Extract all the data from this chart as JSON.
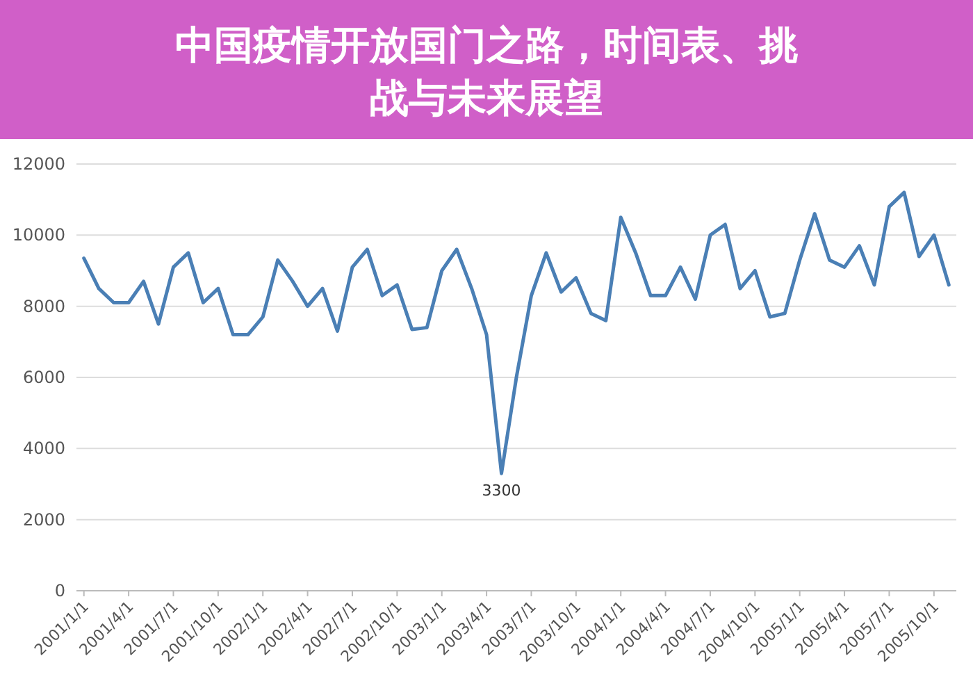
{
  "chart_data": {
    "type": "line",
    "title": "中国疫情开放国门之路，时间表、挑战与未来展望",
    "categories": [
      "2001/1/1",
      null,
      null,
      "2001/4/1",
      null,
      null,
      "2001/7/1",
      null,
      null,
      "2001/10/1",
      null,
      null,
      "2002/1/1",
      null,
      null,
      "2002/4/1",
      null,
      null,
      "2002/7/1",
      null,
      null,
      "2002/10/1",
      null,
      null,
      "2003/1/1",
      null,
      null,
      "2003/4/1",
      null,
      null,
      "2003/7/1",
      null,
      null,
      "2003/10/1",
      null,
      null,
      "2004/1/1",
      null,
      null,
      "2004/4/1",
      null,
      null,
      "2004/7/1",
      null,
      null,
      "2004/10/1",
      null,
      null,
      "2005/1/1",
      null,
      null,
      "2005/4/1",
      null,
      null,
      "2005/7/1",
      null,
      null,
      "2005/10/1",
      null
    ],
    "values": [
      9350,
      8500,
      8100,
      8100,
      8700,
      7500,
      9100,
      9500,
      8100,
      8500,
      7200,
      7200,
      7700,
      9300,
      8700,
      8000,
      8500,
      7300,
      9100,
      9600,
      8300,
      8600,
      7350,
      7400,
      9000,
      9600,
      8500,
      7200,
      3300,
      6000,
      8300,
      9500,
      8400,
      8800,
      7800,
      7600,
      10500,
      9500,
      8300,
      8300,
      9100,
      8200,
      10000,
      10300,
      8500,
      9000,
      7700,
      7800,
      9300,
      10600,
      9300,
      9100,
      9700,
      8600,
      10800,
      11200,
      9400,
      10000,
      8600
    ],
    "value_labels": [
      null,
      null,
      null,
      null,
      null,
      null,
      null,
      null,
      null,
      null,
      null,
      null,
      null,
      null,
      null,
      null,
      null,
      null,
      null,
      null,
      null,
      null,
      null,
      null,
      null,
      null,
      null,
      null,
      "3300",
      null,
      null,
      null,
      null,
      null,
      null,
      null,
      null,
      null,
      null,
      null,
      null,
      null,
      null,
      null,
      null,
      null,
      null,
      null,
      null,
      null,
      null,
      null,
      null,
      null,
      null,
      null,
      null,
      null,
      null
    ],
    "color": "#4a7fb5",
    "ylim": [
      0,
      12000
    ],
    "yticks": [
      0,
      2000,
      4000,
      6000,
      8000,
      10000,
      12000
    ],
    "grid": "y"
  }
}
